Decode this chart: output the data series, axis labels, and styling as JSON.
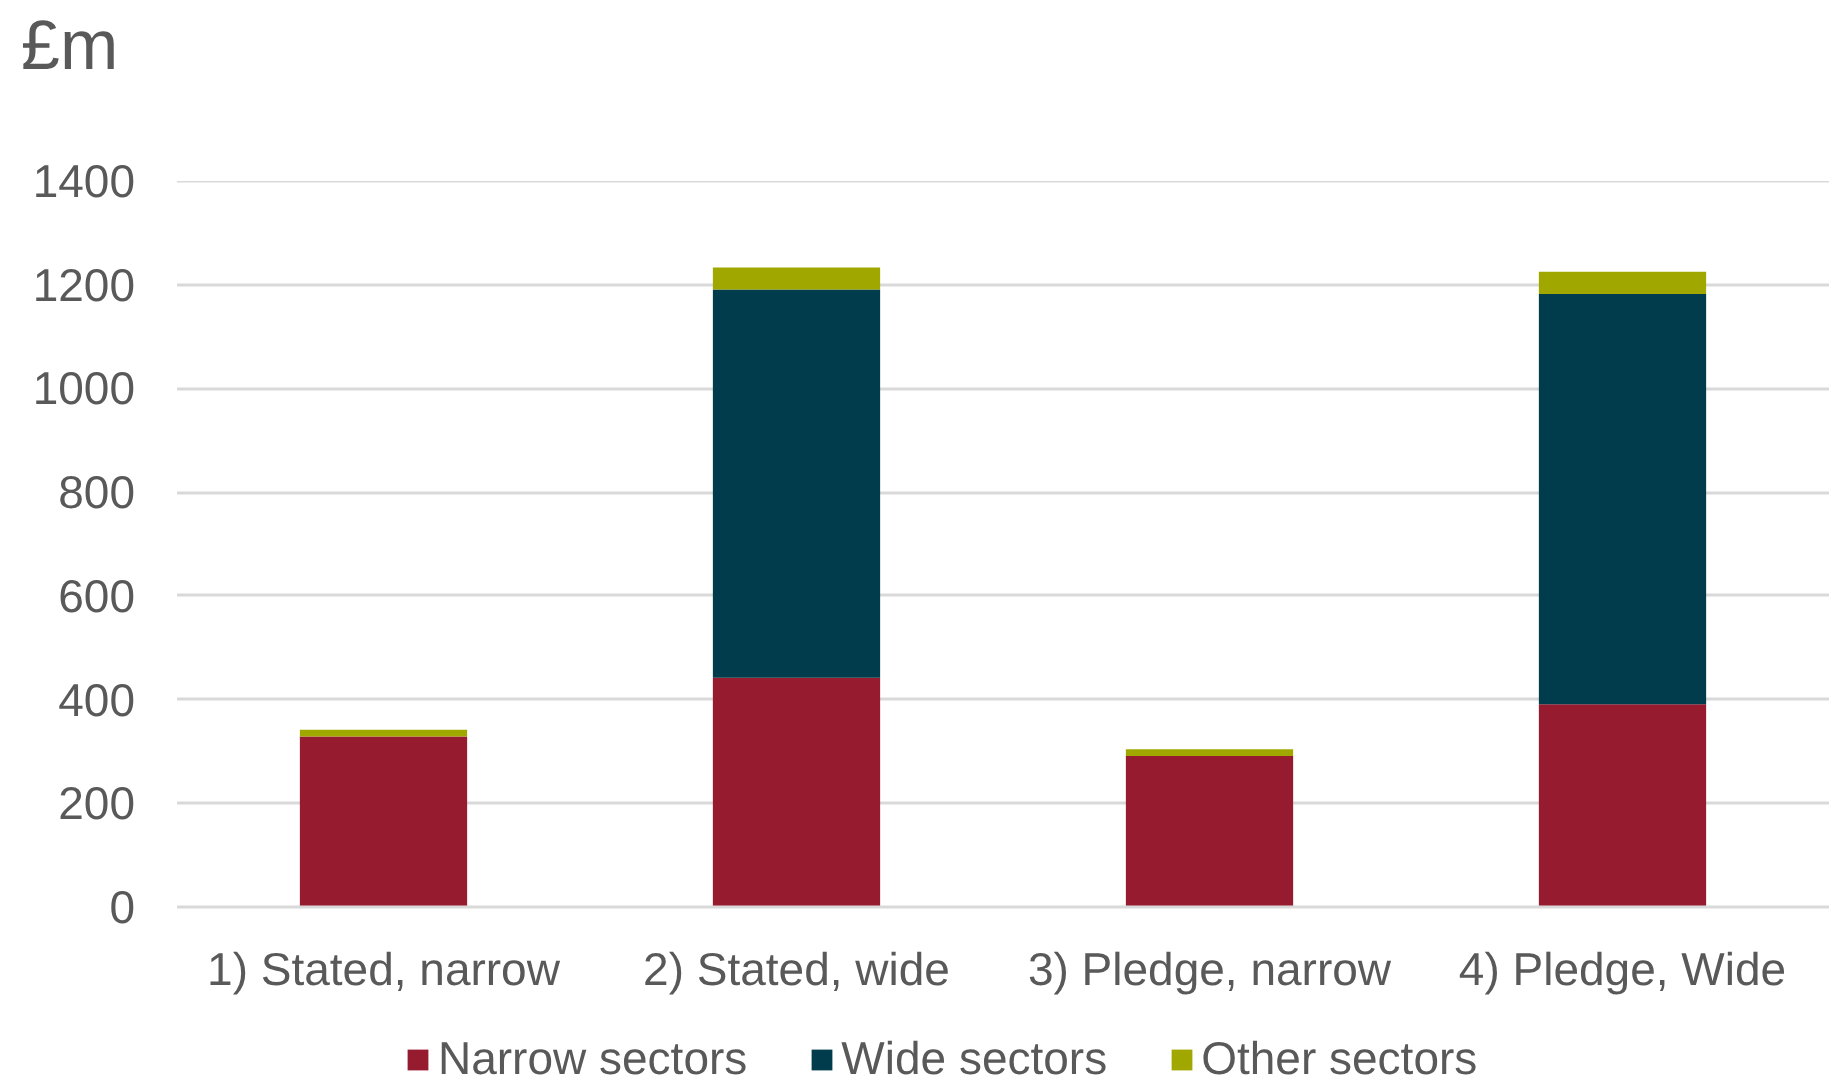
{
  "chart_data": {
    "type": "bar",
    "stacked": true,
    "ylabel": "£m",
    "categories": [
      "1) Stated, narrow",
      "2) Stated, wide",
      "3) Pledge, narrow",
      "4) Pledge, Wide"
    ],
    "series": [
      {
        "name": "Narrow sectors",
        "color": "#961b2e",
        "values": [
          329,
          442,
          291,
          391
        ]
      },
      {
        "name": "Wide sectors",
        "color": "#003c4b",
        "values": [
          null,
          749,
          null,
          791
        ]
      },
      {
        "name": "Other sectors",
        "color": "#a0a800",
        "values": [
          13,
          42,
          13,
          43
        ]
      }
    ],
    "ylim": [
      0,
      1400
    ],
    "yticks": [
      0,
      200,
      400,
      600,
      800,
      1000,
      1200,
      1400
    ],
    "grid": "y",
    "legend": "bottom"
  }
}
